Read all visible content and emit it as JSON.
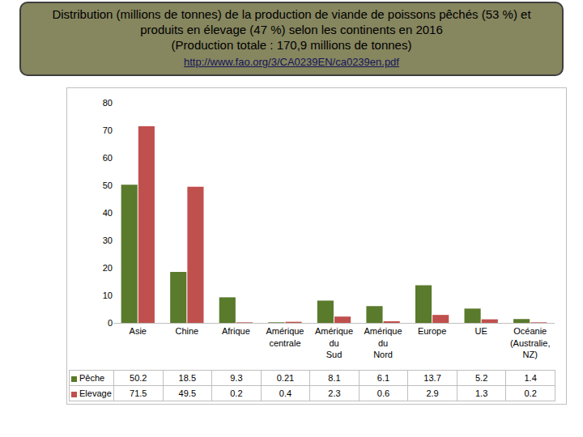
{
  "chart_data": {
    "type": "bar",
    "title": "Distribution (millions de tonnes) de la production de viande de poissons pêchés (53 %) et produits en élevage (47 %) selon les continents en 2016",
    "subtitle": "(Production totale : 170,9 millions de tonnes)",
    "source": "http://www.fao.org/3/CA0239EN/ca0239en.pdf",
    "categories": [
      "Asie",
      "Chine",
      "Afrique",
      "Amérique centrale",
      "Amérique du Sud",
      "Amérique du Nord",
      "Europe",
      "UE",
      "Océanie (Australie, NZ)"
    ],
    "series": [
      {
        "name": "Pêche",
        "color": "#5a7a2c",
        "values": [
          50.2,
          18.5,
          9.3,
          0.21,
          8.1,
          6.1,
          13.7,
          5.2,
          1.4
        ]
      },
      {
        "name": "Elevage",
        "color": "#c0504d",
        "values": [
          71.5,
          49.5,
          0.2,
          0.4,
          2.3,
          0.6,
          2.9,
          1.3,
          0.2
        ]
      }
    ],
    "ylim": [
      0,
      80
    ],
    "yticks": [
      0,
      10,
      20,
      30,
      40,
      50,
      60,
      70,
      80
    ],
    "grid": false
  }
}
